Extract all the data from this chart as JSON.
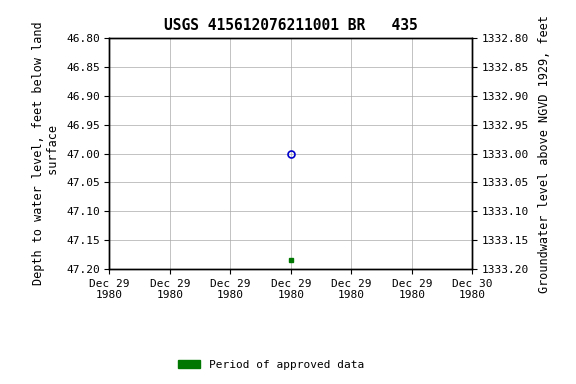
{
  "title": "USGS 415612076211001 BR   435",
  "left_ylabel": "Depth to water level, feet below land\n surface",
  "right_ylabel": "Groundwater level above NGVD 1929, feet",
  "ylim_left": [
    46.8,
    47.2
  ],
  "ylim_right": [
    1333.2,
    1332.8
  ],
  "xlim": [
    0,
    6
  ],
  "xtick_positions": [
    0,
    1,
    2,
    3,
    4,
    5,
    6
  ],
  "xtick_labels": [
    "Dec 29\n1980",
    "Dec 29\n1980",
    "Dec 29\n1980",
    "Dec 29\n1980",
    "Dec 29\n1980",
    "Dec 29\n1980",
    "Dec 30\n1980"
  ],
  "yticks_left": [
    46.8,
    46.85,
    46.9,
    46.95,
    47.0,
    47.05,
    47.1,
    47.15,
    47.2
  ],
  "ytick_labels_left": [
    "46.80",
    "46.85",
    "46.90",
    "46.95",
    "47.00",
    "47.05",
    "47.10",
    "47.15",
    "47.20"
  ],
  "yticks_right": [
    1333.2,
    1333.15,
    1333.1,
    1333.05,
    1333.0,
    1332.95,
    1332.9,
    1332.85,
    1332.8
  ],
  "ytick_labels_right": [
    "1333.20",
    "1333.15",
    "1333.10",
    "1333.05",
    "1333.00",
    "1332.95",
    "1332.90",
    "1332.85",
    "1332.80"
  ],
  "point_blue_x": 3.0,
  "point_blue_y": 47.0,
  "point_green_x": 3.0,
  "point_green_y": 47.185,
  "blue_color": "#0000cc",
  "green_color": "#007700",
  "legend_label": "Period of approved data",
  "background_color": "#ffffff",
  "grid_color": "#aaaaaa",
  "title_fontsize": 10.5,
  "label_fontsize": 8.5,
  "tick_fontsize": 8,
  "font_family": "monospace"
}
